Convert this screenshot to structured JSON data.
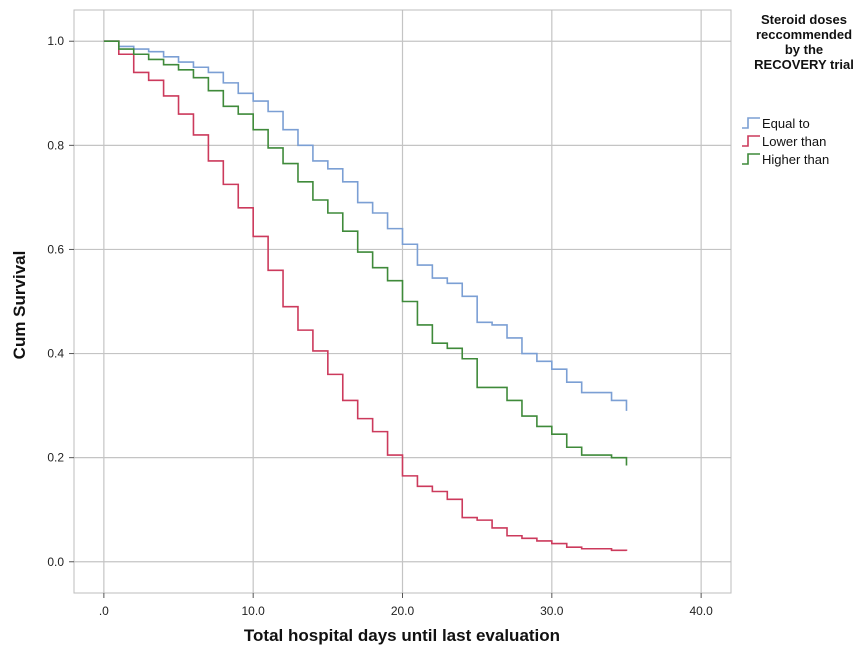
{
  "chart_data": {
    "type": "line",
    "step": true,
    "xlabel": "Total hospital days until last evaluation",
    "ylabel": "Cum Survival",
    "xlim": [
      -2.0,
      42.0
    ],
    "ylim": [
      -0.06,
      1.06
    ],
    "x_ticks": [
      0,
      10,
      20,
      30,
      40
    ],
    "x_tick_labels": [
      ".0",
      "10.0",
      "20.0",
      "30.0",
      "40.0"
    ],
    "y_ticks": [
      0.0,
      0.2,
      0.4,
      0.6,
      0.8,
      1.0
    ],
    "y_tick_labels": [
      "0.0",
      "0.2",
      "0.4",
      "0.6",
      "0.8",
      "1.0"
    ],
    "grid": true,
    "legend": {
      "title": [
        "Steroid doses",
        "reccommended",
        "by the",
        "RECOVERY trial"
      ],
      "position": "right"
    },
    "series": [
      {
        "name": "Equal to",
        "color": "#7b9fd4",
        "x": [
          0,
          1,
          2,
          3,
          4,
          5,
          6,
          7,
          8,
          9,
          10,
          11,
          12,
          13,
          14,
          15,
          16,
          17,
          18,
          19,
          20,
          21,
          22,
          23,
          24,
          25,
          26,
          27,
          28,
          29,
          30,
          31,
          32,
          33,
          34,
          35
        ],
        "y": [
          1.0,
          0.99,
          0.985,
          0.98,
          0.97,
          0.96,
          0.95,
          0.94,
          0.92,
          0.9,
          0.885,
          0.865,
          0.83,
          0.8,
          0.77,
          0.755,
          0.73,
          0.69,
          0.67,
          0.64,
          0.61,
          0.57,
          0.545,
          0.535,
          0.51,
          0.46,
          0.455,
          0.43,
          0.4,
          0.385,
          0.37,
          0.345,
          0.325,
          0.325,
          0.31,
          0.29
        ]
      },
      {
        "name": "Lower than",
        "color": "#cc3a5c",
        "x": [
          0,
          1,
          2,
          3,
          4,
          5,
          6,
          7,
          8,
          9,
          10,
          11,
          12,
          13,
          14,
          15,
          16,
          17,
          18,
          19,
          20,
          21,
          22,
          23,
          24,
          25,
          26,
          27,
          28,
          29,
          30,
          31,
          32,
          33,
          34,
          35
        ],
        "y": [
          1.0,
          0.975,
          0.94,
          0.925,
          0.895,
          0.86,
          0.82,
          0.77,
          0.725,
          0.68,
          0.625,
          0.56,
          0.49,
          0.445,
          0.405,
          0.36,
          0.31,
          0.275,
          0.25,
          0.205,
          0.165,
          0.145,
          0.135,
          0.12,
          0.085,
          0.08,
          0.065,
          0.05,
          0.045,
          0.04,
          0.035,
          0.028,
          0.025,
          0.025,
          0.022,
          0.021
        ]
      },
      {
        "name": "Higher than",
        "color": "#3f8a3a",
        "x": [
          0,
          1,
          2,
          3,
          4,
          5,
          6,
          7,
          8,
          9,
          10,
          11,
          12,
          13,
          14,
          15,
          16,
          17,
          18,
          19,
          20,
          21,
          22,
          23,
          24,
          25,
          26,
          27,
          28,
          29,
          30,
          31,
          32,
          33,
          34,
          35
        ],
        "y": [
          1.0,
          0.985,
          0.975,
          0.965,
          0.955,
          0.945,
          0.93,
          0.905,
          0.875,
          0.86,
          0.83,
          0.795,
          0.765,
          0.73,
          0.695,
          0.67,
          0.635,
          0.595,
          0.565,
          0.54,
          0.5,
          0.455,
          0.42,
          0.41,
          0.39,
          0.335,
          0.335,
          0.31,
          0.28,
          0.26,
          0.245,
          0.22,
          0.205,
          0.205,
          0.2,
          0.185
        ]
      }
    ]
  }
}
